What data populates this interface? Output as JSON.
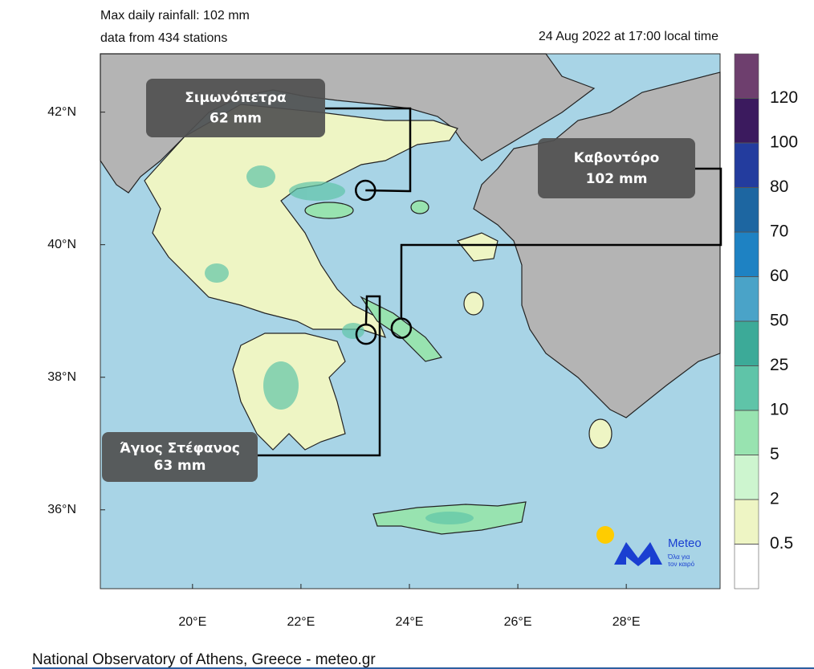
{
  "chart_data": {
    "type": "map",
    "title": "Max daily rainfall: 102 mm",
    "subtitle": "data from 434 stations",
    "time": "24 Aug 2022 at 17:00 local time",
    "footer": "National Observatory of Athens, Greece - meteo.gr",
    "xlim": [
      18.3,
      29.73
    ],
    "ylim": [
      34.81,
      42.88
    ],
    "xticks": [
      {
        "value": 20,
        "label": "20°E"
      },
      {
        "value": 22,
        "label": "22°E"
      },
      {
        "value": 24,
        "label": "24°E"
      },
      {
        "value": 26,
        "label": "26°E"
      },
      {
        "value": 28,
        "label": "28°E"
      }
    ],
    "yticks": [
      {
        "value": 36,
        "label": "36°N"
      },
      {
        "value": 38,
        "label": "38°N"
      },
      {
        "value": 40,
        "label": "40°N"
      },
      {
        "value": 42,
        "label": "42°N"
      }
    ],
    "colorbar": {
      "levels": [
        0.5,
        2,
        5,
        10,
        25,
        50,
        60,
        70,
        80,
        100,
        120
      ],
      "colors": [
        "#ffffff",
        "#eef5c4",
        "#cdf5cf",
        "#98e3b0",
        "#5fc4a8",
        "#3caa98",
        "#4aa3c8",
        "#1e82c3",
        "#1d66a1",
        "#233c9e",
        "#3b1a5e",
        "#6e3f6e"
      ]
    },
    "stations": {
      "names": [
        "Σιμωνόπετρα",
        "Καβοντόρο",
        "Άγιος Στέφανος"
      ],
      "lon": [
        23.19,
        23.85,
        23.2
      ],
      "lat": [
        40.82,
        38.74,
        38.65
      ],
      "values": [
        62,
        102,
        63
      ],
      "value_labels": [
        "62 mm",
        "102 mm",
        "63 mm"
      ]
    },
    "logo": {
      "name": "Meteo",
      "tagline": [
        "Όλα για",
        "τον καιρό"
      ]
    }
  }
}
